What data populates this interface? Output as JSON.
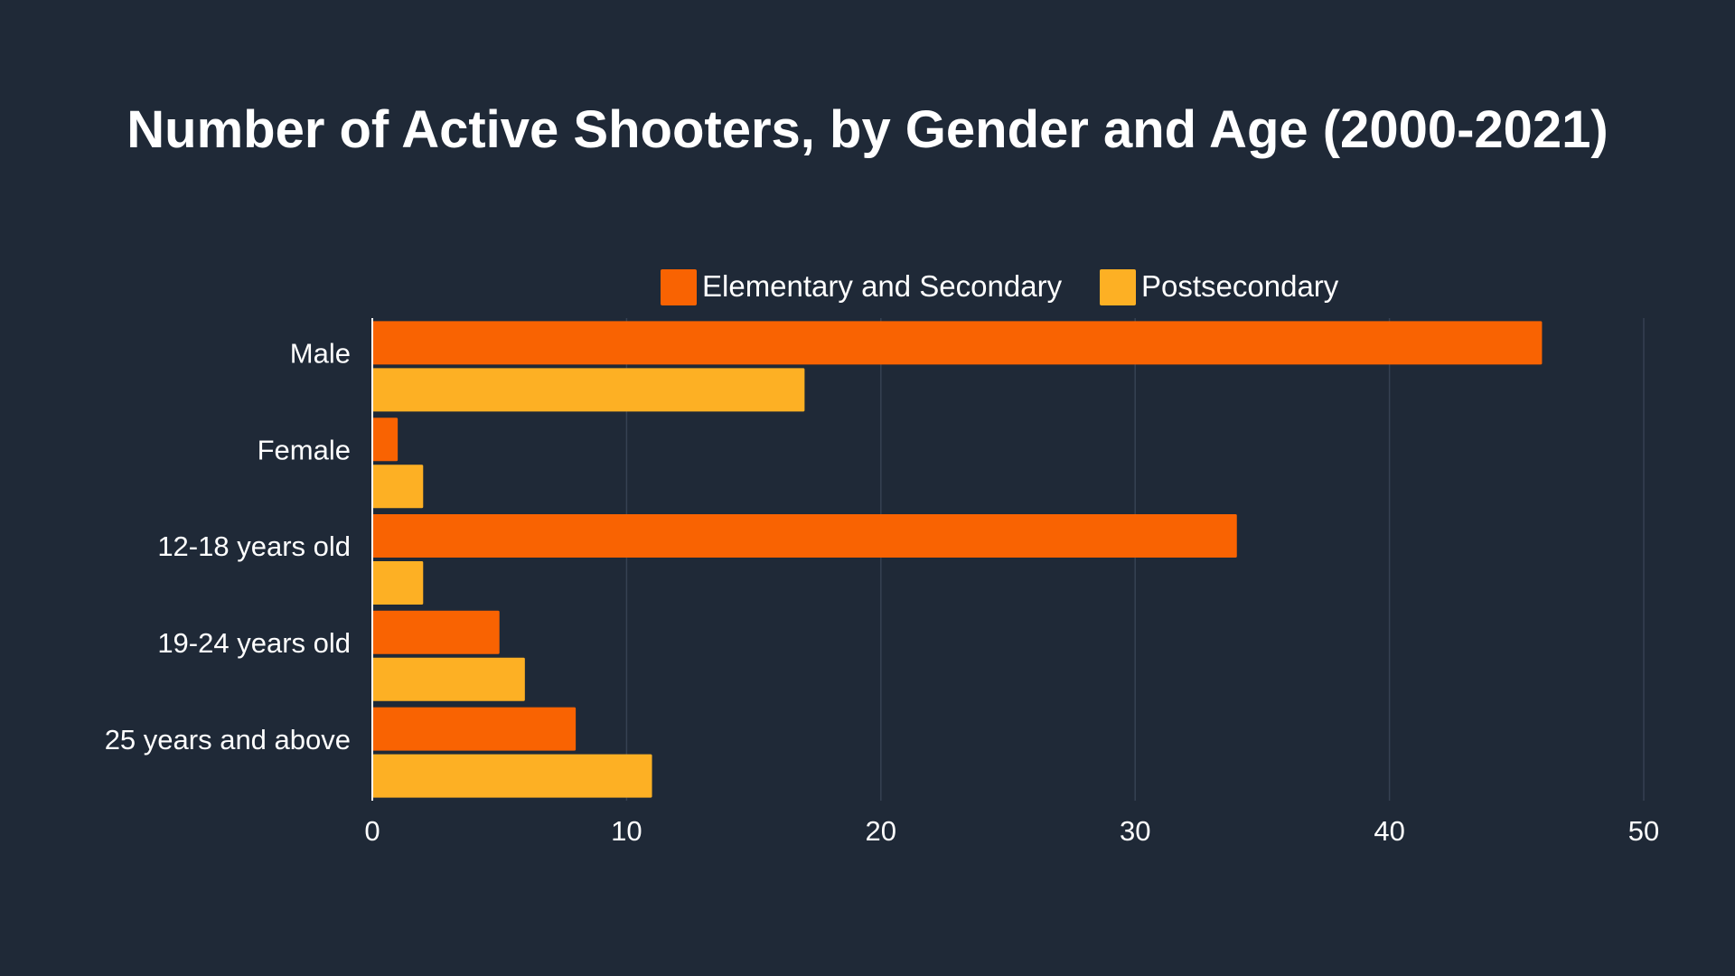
{
  "chart_data": {
    "type": "bar",
    "orientation": "horizontal",
    "title": "Number of Active Shooters, by Gender and Age (2000-2021)",
    "categories": [
      "Male",
      "Female",
      "12-18 years old",
      "19-24 years old",
      "25 years and above"
    ],
    "series": [
      {
        "name": "Elementary and Secondary",
        "color": "#f96302",
        "values": [
          46,
          1,
          34,
          5,
          8
        ]
      },
      {
        "name": "Postsecondary",
        "color": "#fdb024",
        "values": [
          17,
          2,
          2,
          6,
          11
        ]
      }
    ],
    "xlim": [
      0,
      50
    ],
    "xticks": [
      "0",
      "10",
      "20",
      "30",
      "40",
      "50"
    ],
    "xlabel": "",
    "ylabel": "",
    "grid": true,
    "legend_position": "top"
  },
  "colors": {
    "background": "#1f2937",
    "text": "#ffffff",
    "grid": "#364152",
    "axis": "#ffffff"
  }
}
